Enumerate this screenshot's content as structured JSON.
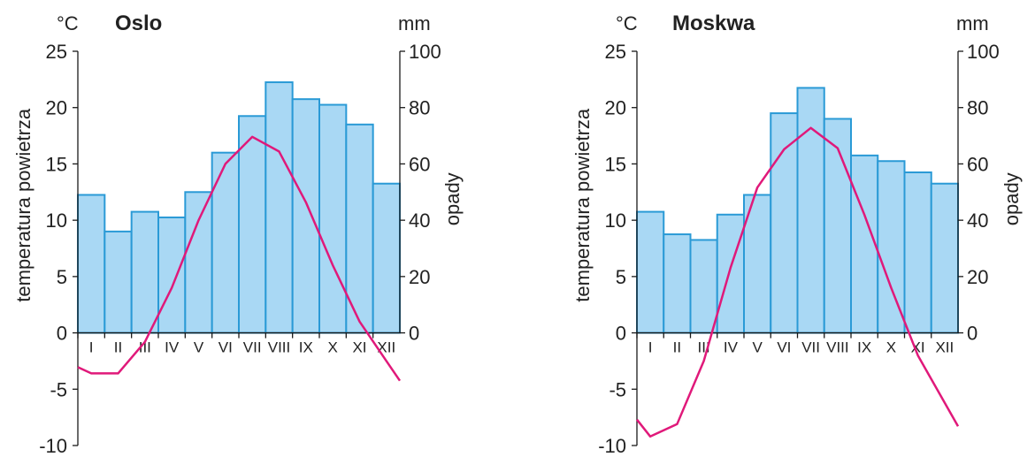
{
  "chart_data": [
    {
      "type": "bar+line",
      "title": "Oslo",
      "categories": [
        "I",
        "II",
        "III",
        "IV",
        "V",
        "VI",
        "VII",
        "VIII",
        "IX",
        "X",
        "XI",
        "XII"
      ],
      "temp_unit": "°C",
      "precip_unit": "mm",
      "ylabel_left": "temperatura powietrza",
      "ylabel_right": "opady",
      "ylim_left": [
        -10,
        25
      ],
      "ylim_right": [
        0,
        100
      ],
      "yticks_left": [
        "-10",
        "-5",
        "0",
        "5",
        "10",
        "15",
        "20",
        "25"
      ],
      "yticks_right": [
        "0",
        "20",
        "40",
        "60",
        "80",
        "100"
      ],
      "series": [
        {
          "kind": "bar",
          "axis": "right",
          "values": [
            49,
            36,
            43,
            41,
            50,
            64,
            77,
            89,
            83,
            81,
            74,
            53
          ]
        },
        {
          "kind": "line",
          "axis": "left",
          "values": [
            -3.6,
            -3.6,
            -0.8,
            4.0,
            10.0,
            15.0,
            17.4,
            16.1,
            11.6,
            6.0,
            1.0,
            -2.5
          ]
        }
      ],
      "colors": {
        "bar_fill": "#a9d8f4",
        "bar_stroke": "#2a9ad6",
        "line": "#e0197a"
      }
    },
    {
      "type": "bar+line",
      "title": "Moskwa",
      "categories": [
        "I",
        "II",
        "III",
        "IV",
        "V",
        "VI",
        "VII",
        "VIII",
        "IX",
        "X",
        "XI",
        "XII"
      ],
      "temp_unit": "°C",
      "precip_unit": "mm",
      "ylabel_left": "temperatura powietrza",
      "ylabel_right": "opady",
      "ylim_left": [
        -10,
        25
      ],
      "ylim_right": [
        0,
        100
      ],
      "yticks_left": [
        "-10",
        "-5",
        "0",
        "5",
        "10",
        "15",
        "20",
        "25"
      ],
      "yticks_right": [
        "0",
        "20",
        "40",
        "60",
        "80",
        "100"
      ],
      "series": [
        {
          "kind": "bar",
          "axis": "right",
          "values": [
            43,
            35,
            33,
            42,
            49,
            78,
            87,
            76,
            63,
            61,
            57,
            53
          ]
        },
        {
          "kind": "line",
          "axis": "left",
          "values": [
            -9.2,
            -8.1,
            -2.5,
            5.8,
            12.9,
            16.3,
            18.2,
            16.4,
            10.5,
            4.0,
            -2.0,
            -6.2
          ]
        }
      ],
      "colors": {
        "bar_fill": "#a9d8f4",
        "bar_stroke": "#2a9ad6",
        "line": "#e0197a"
      }
    }
  ]
}
